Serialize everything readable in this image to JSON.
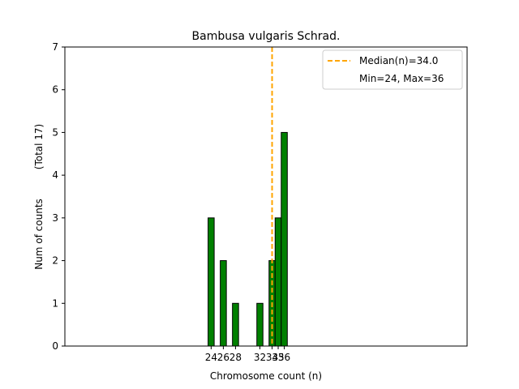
{
  "chart_data": {
    "type": "bar",
    "title": "Bambusa vulgaris Schrad.",
    "xlabel": "Chromosome count (n)",
    "ylabel": "Num of counts",
    "ylabel_secondary": "(Total 17)",
    "xlim": [
      0,
      66
    ],
    "ylim": [
      0,
      7
    ],
    "yticks": [
      0,
      1,
      2,
      3,
      4,
      5,
      6,
      7
    ],
    "xticks": [
      24,
      26,
      28,
      32,
      34,
      35,
      36
    ],
    "bars": [
      {
        "x": 24,
        "y": 3
      },
      {
        "x": 26,
        "y": 2
      },
      {
        "x": 28,
        "y": 1
      },
      {
        "x": 32,
        "y": 1
      },
      {
        "x": 34,
        "y": 2
      },
      {
        "x": 35,
        "y": 3
      },
      {
        "x": 36,
        "y": 5
      }
    ],
    "bar_color": "#008000",
    "bar_edge_color": "#000000",
    "median": 34.0,
    "median_color": "#ffa500",
    "legend": {
      "position": "upper right",
      "entries": [
        "Median(n)=34.0",
        "Min=24, Max=36"
      ]
    }
  }
}
